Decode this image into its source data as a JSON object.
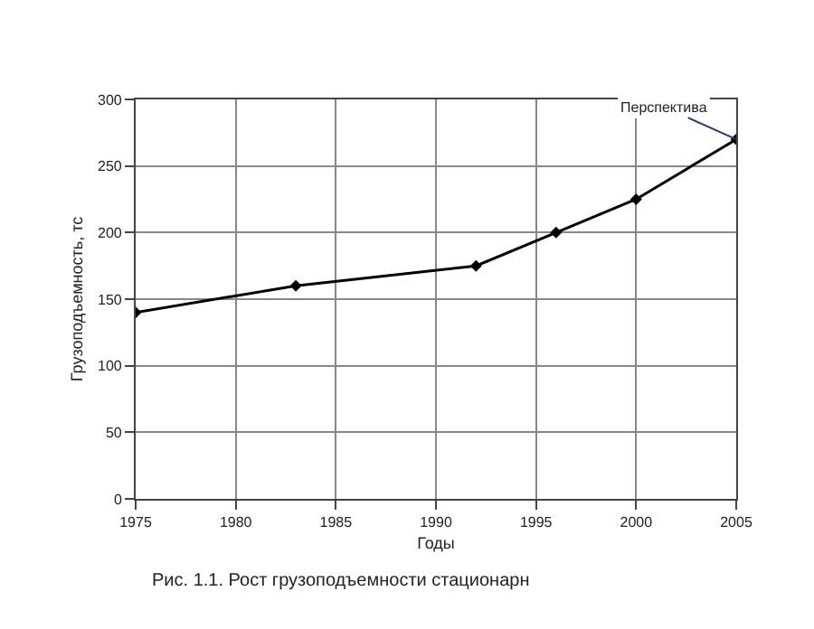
{
  "chart_data": {
    "type": "line",
    "xlabel": "Годы",
    "ylabel": "Грузоподъемность, тс",
    "x": [
      1975,
      1983,
      1992,
      1996,
      2000,
      2005
    ],
    "series": [
      {
        "color": "#000000",
        "values": [
          140,
          160,
          175,
          200,
          225,
          270
        ]
      }
    ],
    "xlim": [
      1975,
      2005
    ],
    "xticks": [
      1975,
      1980,
      1985,
      1990,
      1995,
      2000,
      2005
    ],
    "ylim": [
      0,
      300
    ],
    "yticks": [
      0,
      50,
      100,
      150,
      200,
      250,
      300
    ],
    "grid": true,
    "marker": "diamond",
    "line_style": "solid",
    "annotations": [
      {
        "text": "Перспектива",
        "x": 2005,
        "y": 270
      },
      "Рис. 1.1. Рост грузоподъемности стационарн"
    ]
  }
}
